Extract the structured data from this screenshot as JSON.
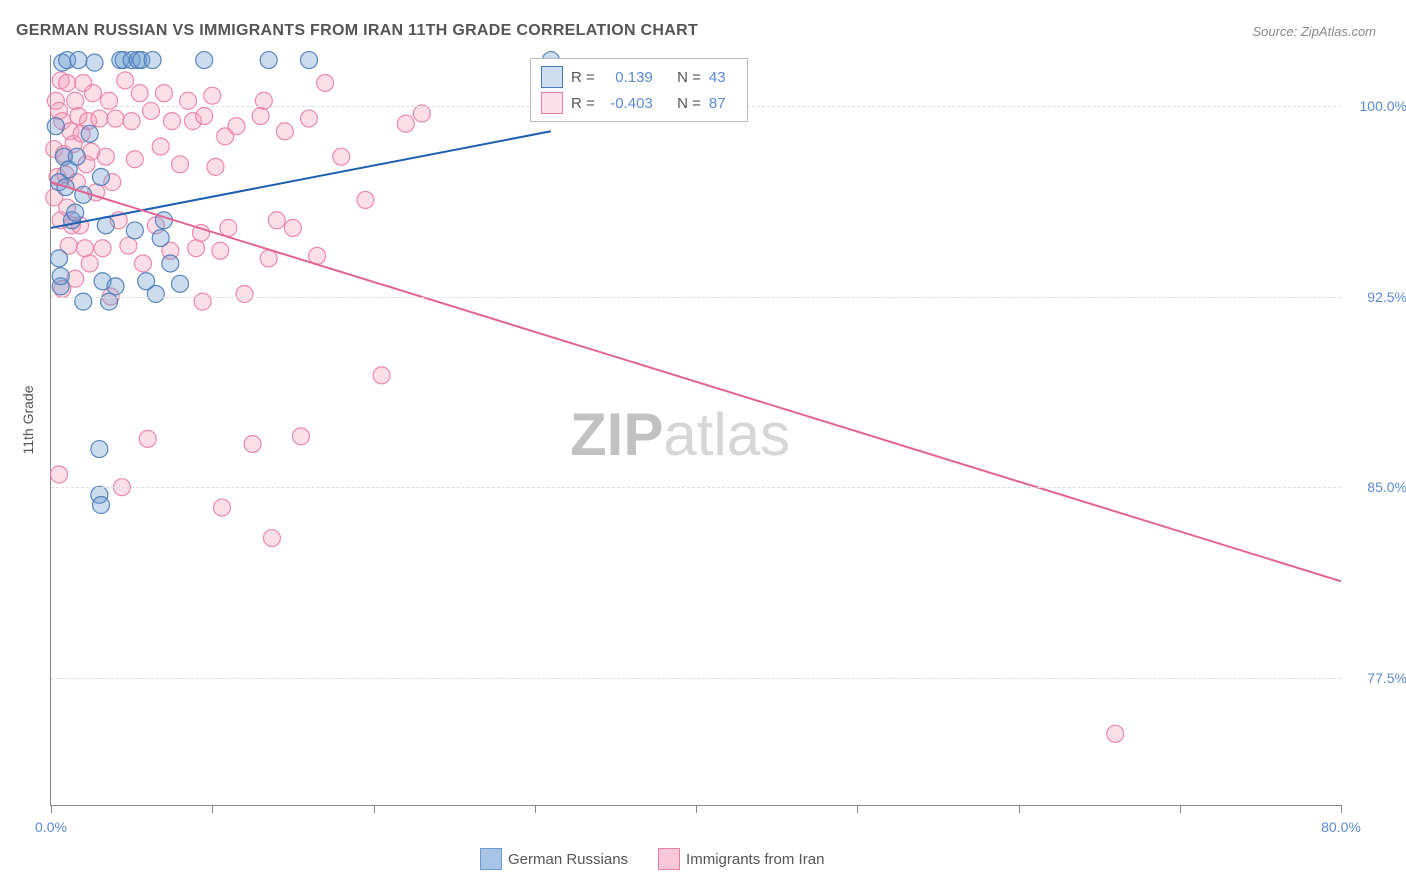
{
  "title": "GERMAN RUSSIAN VS IMMIGRANTS FROM IRAN 11TH GRADE CORRELATION CHART",
  "source": "Source: ZipAtlas.com",
  "ylabel": "11th Grade",
  "watermark_a": "ZIP",
  "watermark_b": "atlas",
  "chart": {
    "type": "scatter-with-regression",
    "xlim": [
      0,
      80
    ],
    "ylim": [
      72.5,
      102
    ],
    "xticks": [
      0,
      10,
      20,
      30,
      40,
      50,
      60,
      70,
      80
    ],
    "xtick_labels": {
      "0": "0.0%",
      "80": "80.0%"
    },
    "yticks": [
      77.5,
      85.0,
      92.5,
      100.0
    ],
    "ytick_labels": [
      "77.5%",
      "85.0%",
      "92.5%",
      "100.0%"
    ],
    "grid_color": "#dddddd",
    "axis_color": "#888888",
    "background": "#ffffff",
    "marker_radius": 8.5,
    "marker_fill_opacity": 0.35,
    "marker_stroke_opacity": 0.9,
    "marker_stroke_width": 1.2,
    "line_width": 2,
    "series": [
      {
        "name": "German Russians",
        "color": "#6b9bd1",
        "stroke": "#4a7ab8",
        "line_color": "#1e5fb3",
        "R": "0.139",
        "N": "43",
        "regression": {
          "x1": 0,
          "y1": 95.2,
          "x2": 31,
          "y2": 99.0
        },
        "points": [
          [
            0.3,
            99.2
          ],
          [
            0.5,
            97.0
          ],
          [
            0.5,
            94.0
          ],
          [
            0.6,
            92.9
          ],
          [
            0.6,
            93.3
          ],
          [
            0.7,
            101.7
          ],
          [
            0.8,
            98.0
          ],
          [
            0.9,
            96.8
          ],
          [
            1.0,
            101.8
          ],
          [
            1.1,
            97.5
          ],
          [
            1.3,
            95.5
          ],
          [
            1.5,
            95.8
          ],
          [
            1.6,
            98.0
          ],
          [
            1.7,
            101.8
          ],
          [
            2.0,
            96.5
          ],
          [
            2.0,
            92.3
          ],
          [
            2.4,
            98.9
          ],
          [
            2.7,
            101.7
          ],
          [
            3.0,
            86.5
          ],
          [
            3.0,
            84.7
          ],
          [
            3.1,
            84.3
          ],
          [
            3.1,
            97.2
          ],
          [
            3.2,
            93.1
          ],
          [
            3.4,
            95.3
          ],
          [
            3.6,
            92.3
          ],
          [
            4.0,
            92.9
          ],
          [
            4.3,
            101.8
          ],
          [
            4.5,
            101.8
          ],
          [
            5.0,
            101.8
          ],
          [
            5.2,
            95.1
          ],
          [
            5.4,
            101.8
          ],
          [
            5.6,
            101.8
          ],
          [
            5.9,
            93.1
          ],
          [
            6.3,
            101.8
          ],
          [
            6.5,
            92.6
          ],
          [
            6.8,
            94.8
          ],
          [
            7.0,
            95.5
          ],
          [
            7.4,
            93.8
          ],
          [
            8.0,
            93.0
          ],
          [
            9.5,
            101.8
          ],
          [
            13.5,
            101.8
          ],
          [
            16.0,
            101.8
          ],
          [
            31.0,
            101.8
          ]
        ]
      },
      {
        "name": "Immigrants from Iran",
        "color": "#f5a0bb",
        "stroke": "#e97fa3",
        "line_color": "#e36492",
        "R": "-0.403",
        "N": "87",
        "regression": {
          "x1": 0,
          "y1": 97.0,
          "x2": 80,
          "y2": 81.3
        },
        "points": [
          [
            0.2,
            96.4
          ],
          [
            0.2,
            98.3
          ],
          [
            0.3,
            100.2
          ],
          [
            0.4,
            97.2
          ],
          [
            0.5,
            99.8
          ],
          [
            0.5,
            85.5
          ],
          [
            0.6,
            101.0
          ],
          [
            0.6,
            95.5
          ],
          [
            0.7,
            99.4
          ],
          [
            0.7,
            92.8
          ],
          [
            0.8,
            98.1
          ],
          [
            0.9,
            97.3
          ],
          [
            1.0,
            100.9
          ],
          [
            1.0,
            96.0
          ],
          [
            1.1,
            94.5
          ],
          [
            1.2,
            99.0
          ],
          [
            1.3,
            95.3
          ],
          [
            1.4,
            98.5
          ],
          [
            1.5,
            100.2
          ],
          [
            1.5,
            93.2
          ],
          [
            1.6,
            97.0
          ],
          [
            1.7,
            99.6
          ],
          [
            1.8,
            95.3
          ],
          [
            1.9,
            98.9
          ],
          [
            2.0,
            100.9
          ],
          [
            2.1,
            94.4
          ],
          [
            2.2,
            97.7
          ],
          [
            2.3,
            99.4
          ],
          [
            2.4,
            93.8
          ],
          [
            2.5,
            98.2
          ],
          [
            2.6,
            100.5
          ],
          [
            2.8,
            96.6
          ],
          [
            3.0,
            99.5
          ],
          [
            3.2,
            94.4
          ],
          [
            3.4,
            98.0
          ],
          [
            3.6,
            100.2
          ],
          [
            3.7,
            92.5
          ],
          [
            3.8,
            97.0
          ],
          [
            4.0,
            99.5
          ],
          [
            4.2,
            95.5
          ],
          [
            4.4,
            85.0
          ],
          [
            4.6,
            101.0
          ],
          [
            4.8,
            94.5
          ],
          [
            5.0,
            99.4
          ],
          [
            5.2,
            97.9
          ],
          [
            5.5,
            100.5
          ],
          [
            5.7,
            93.8
          ],
          [
            6.0,
            86.9
          ],
          [
            6.2,
            99.8
          ],
          [
            6.5,
            95.3
          ],
          [
            6.8,
            98.4
          ],
          [
            7.0,
            100.5
          ],
          [
            7.4,
            94.3
          ],
          [
            7.5,
            99.4
          ],
          [
            8.0,
            97.7
          ],
          [
            8.5,
            100.2
          ],
          [
            8.8,
            99.4
          ],
          [
            9.0,
            94.4
          ],
          [
            9.3,
            95.0
          ],
          [
            9.5,
            99.6
          ],
          [
            9.4,
            92.3
          ],
          [
            10.0,
            100.4
          ],
          [
            10.2,
            97.6
          ],
          [
            10.5,
            94.3
          ],
          [
            10.6,
            84.2
          ],
          [
            10.8,
            98.8
          ],
          [
            11.0,
            95.2
          ],
          [
            11.5,
            99.2
          ],
          [
            12.0,
            92.6
          ],
          [
            12.5,
            86.7
          ],
          [
            13.0,
            99.6
          ],
          [
            13.2,
            100.2
          ],
          [
            13.5,
            94.0
          ],
          [
            13.7,
            83.0
          ],
          [
            14.0,
            95.5
          ],
          [
            14.5,
            99.0
          ],
          [
            15.0,
            95.2
          ],
          [
            15.5,
            87.0
          ],
          [
            16.0,
            99.5
          ],
          [
            16.5,
            94.1
          ],
          [
            17.0,
            100.9
          ],
          [
            18.0,
            98.0
          ],
          [
            19.5,
            96.3
          ],
          [
            20.5,
            89.4
          ],
          [
            22.0,
            99.3
          ],
          [
            23.0,
            99.7
          ],
          [
            66.0,
            75.3
          ]
        ]
      }
    ]
  },
  "legend_inset": {
    "R_label": "R =",
    "N_label": "N ="
  },
  "bottom_legend": [
    {
      "label": "German Russians",
      "color": "#a8c5e8",
      "stroke": "#6b9bd1"
    },
    {
      "label": "Immigrants from Iran",
      "color": "#f8c8d8",
      "stroke": "#e97fa3"
    }
  ]
}
